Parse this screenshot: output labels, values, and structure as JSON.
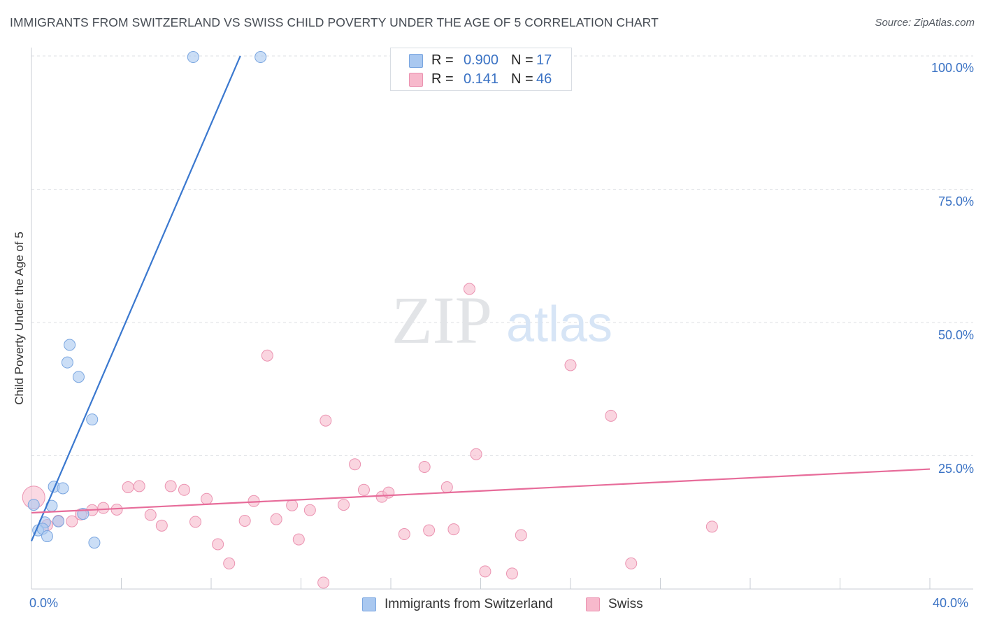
{
  "title": "IMMIGRANTS FROM SWITZERLAND VS SWISS CHILD POVERTY UNDER THE AGE OF 5 CORRELATION CHART",
  "source": "Source: ZipAtlas.com",
  "watermark": {
    "zip": "ZIP",
    "atlas": "atlas"
  },
  "legend_top": {
    "rows": [
      {
        "r_label": "R =",
        "r_value": "0.900",
        "n_label": "N =",
        "n_value": "17",
        "color": "#a9c8f0"
      },
      {
        "r_label": "R =",
        "r_value": "0.141",
        "n_label": "N =",
        "n_value": "46",
        "color": "#f7b9cc"
      }
    ]
  },
  "legend_bottom": {
    "items": [
      {
        "label": "Immigrants from Switzerland",
        "color": "#a9c8f0"
      },
      {
        "label": "Swiss",
        "color": "#f7b9cc"
      }
    ]
  },
  "colors": {
    "blue": "#3a78cf",
    "pink": "#e76c9a",
    "tick_text": "#3a72c4"
  },
  "chart_data": {
    "type": "scatter",
    "title": "IMMIGRANTS FROM SWITZERLAND VS SWISS CHILD POVERTY UNDER THE AGE OF 5 CORRELATION CHART",
    "xlabel": "",
    "ylabel": "Child Poverty Under the Age of 5",
    "xlim": [
      0,
      40
    ],
    "ylim": [
      0,
      100
    ],
    "x_tick_labels": [
      "0.0%",
      "40.0%"
    ],
    "y_ticks": [
      25,
      50,
      75,
      100
    ],
    "y_tick_labels": [
      "25.0%",
      "50.0%",
      "75.0%",
      "100.0%"
    ],
    "grid": true,
    "legend_position": "top-center",
    "series": [
      {
        "name": "Immigrants from Switzerland",
        "color": "#a9c8f0",
        "stroke": "#7aa6e0",
        "trend": {
          "x": [
            0.0,
            9.3
          ],
          "y": [
            9.0,
            100.0
          ],
          "color": "#3a78cf"
        },
        "points": [
          {
            "x": 7.2,
            "y": 99.8
          },
          {
            "x": 10.2,
            "y": 99.8
          },
          {
            "x": 1.7,
            "y": 45.8
          },
          {
            "x": 1.6,
            "y": 42.5
          },
          {
            "x": 2.1,
            "y": 39.8
          },
          {
            "x": 2.7,
            "y": 31.8
          },
          {
            "x": 1.0,
            "y": 19.2
          },
          {
            "x": 1.4,
            "y": 18.9
          },
          {
            "x": 0.1,
            "y": 15.8
          },
          {
            "x": 0.9,
            "y": 15.6
          },
          {
            "x": 2.3,
            "y": 14.1
          },
          {
            "x": 0.6,
            "y": 12.5
          },
          {
            "x": 1.2,
            "y": 12.7
          },
          {
            "x": 0.3,
            "y": 11.0
          },
          {
            "x": 0.5,
            "y": 11.3
          },
          {
            "x": 0.7,
            "y": 9.9
          },
          {
            "x": 2.8,
            "y": 8.7
          }
        ]
      },
      {
        "name": "Swiss",
        "color": "#f7b9cc",
        "stroke": "#eb93b1",
        "trend": {
          "x": [
            0.0,
            40.0
          ],
          "y": [
            14.3,
            22.5
          ],
          "color": "#e76c9a"
        },
        "points": [
          {
            "x": 0.1,
            "y": 17.2,
            "big": true
          },
          {
            "x": 0.7,
            "y": 12.0
          },
          {
            "x": 1.2,
            "y": 12.8
          },
          {
            "x": 1.8,
            "y": 12.7
          },
          {
            "x": 2.2,
            "y": 14.0
          },
          {
            "x": 2.7,
            "y": 14.8
          },
          {
            "x": 3.2,
            "y": 15.2
          },
          {
            "x": 3.8,
            "y": 14.9
          },
          {
            "x": 4.3,
            "y": 19.1
          },
          {
            "x": 4.8,
            "y": 19.3
          },
          {
            "x": 5.3,
            "y": 13.9
          },
          {
            "x": 5.8,
            "y": 11.9
          },
          {
            "x": 6.2,
            "y": 19.3
          },
          {
            "x": 6.8,
            "y": 18.6
          },
          {
            "x": 7.3,
            "y": 12.6
          },
          {
            "x": 7.8,
            "y": 16.9
          },
          {
            "x": 8.3,
            "y": 8.4
          },
          {
            "x": 8.8,
            "y": 4.8
          },
          {
            "x": 9.5,
            "y": 12.8
          },
          {
            "x": 9.9,
            "y": 16.5
          },
          {
            "x": 10.5,
            "y": 43.8
          },
          {
            "x": 10.9,
            "y": 13.1
          },
          {
            "x": 11.6,
            "y": 15.7
          },
          {
            "x": 11.9,
            "y": 9.3
          },
          {
            "x": 12.4,
            "y": 14.8
          },
          {
            "x": 13.1,
            "y": 31.6
          },
          {
            "x": 13.0,
            "y": 1.2
          },
          {
            "x": 13.9,
            "y": 15.8
          },
          {
            "x": 14.4,
            "y": 23.4
          },
          {
            "x": 14.8,
            "y": 18.6
          },
          {
            "x": 15.6,
            "y": 17.3
          },
          {
            "x": 15.9,
            "y": 18.1
          },
          {
            "x": 16.6,
            "y": 10.3
          },
          {
            "x": 17.5,
            "y": 22.9
          },
          {
            "x": 17.7,
            "y": 11.0
          },
          {
            "x": 18.5,
            "y": 19.1
          },
          {
            "x": 18.8,
            "y": 11.2
          },
          {
            "x": 19.5,
            "y": 56.3
          },
          {
            "x": 19.8,
            "y": 25.3
          },
          {
            "x": 20.2,
            "y": 3.3
          },
          {
            "x": 21.4,
            "y": 2.9
          },
          {
            "x": 21.8,
            "y": 10.1
          },
          {
            "x": 24.0,
            "y": 42.0
          },
          {
            "x": 25.8,
            "y": 32.5
          },
          {
            "x": 26.7,
            "y": 4.8
          },
          {
            "x": 30.3,
            "y": 11.7
          }
        ]
      }
    ]
  }
}
